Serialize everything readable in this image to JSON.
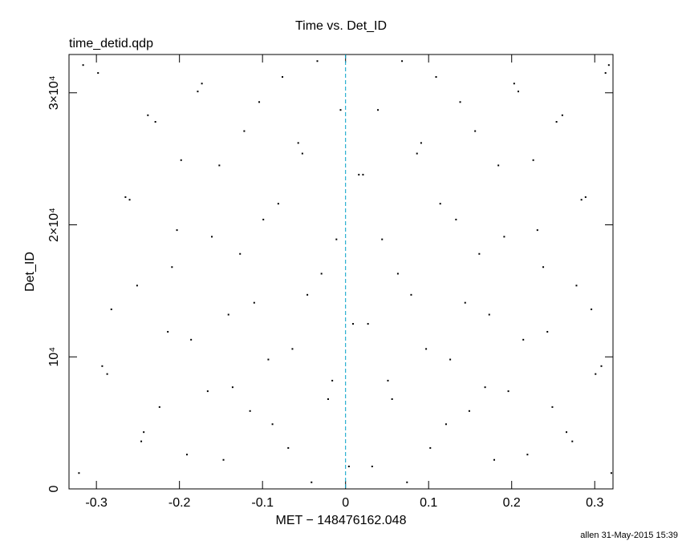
{
  "chart_data": {
    "type": "scatter",
    "title": "Time vs. Det_ID",
    "subtitle": "time_detid.qdp",
    "x_label": "MET − 148476162.048",
    "y_label": "Det_ID",
    "footer": "allen 31-May-2015 15:39",
    "color": "#000000",
    "reference_line": {
      "x": 0,
      "color": "#00a0c8"
    },
    "xlim": [
      -0.333,
      0.322
    ],
    "ylim": [
      0,
      32900
    ],
    "xticks": [
      -0.3,
      -0.2,
      -0.1,
      0,
      0.1,
      0.2,
      0.3
    ],
    "yticks": [
      0,
      {
        "value": 10000,
        "label": "10⁴"
      },
      {
        "value": 20000,
        "label": "2×10⁴"
      },
      {
        "value": 30000,
        "label": "3×10⁴"
      }
    ],
    "x": [
      -0.321,
      -0.298,
      -0.287,
      -0.265,
      -0.251,
      -0.243,
      -0.229,
      -0.214,
      -0.203,
      -0.191,
      -0.178,
      -0.166,
      -0.152,
      -0.141,
      -0.127,
      -0.115,
      -0.104,
      -0.093,
      -0.081,
      -0.069,
      -0.057,
      -0.046,
      -0.034,
      -0.021,
      -0.011,
      0.004,
      0.016,
      0.027,
      0.039,
      0.051,
      0.063,
      0.074,
      0.086,
      0.097,
      0.109,
      0.121,
      0.133,
      0.144,
      0.156,
      0.168,
      0.179,
      0.191,
      0.203,
      0.214,
      0.226,
      0.238,
      0.249,
      0.261,
      0.273,
      0.284,
      0.296,
      0.308,
      0.317,
      -0.316,
      -0.293,
      -0.282,
      -0.26,
      -0.246,
      -0.238,
      -0.224,
      -0.209,
      -0.198,
      -0.186,
      -0.173,
      -0.161,
      -0.147,
      -0.136,
      -0.122,
      -0.11,
      -0.099,
      -0.088,
      -0.076,
      -0.064,
      -0.052,
      -0.041,
      -0.029,
      -0.016,
      -0.006,
      0.009,
      0.021,
      0.032,
      0.044,
      0.056,
      0.068,
      0.079,
      0.091,
      0.102,
      0.114,
      0.126,
      0.138,
      0.149,
      0.161,
      0.173,
      0.184,
      0.196,
      0.208,
      0.219,
      0.231,
      0.243,
      0.254,
      0.266,
      0.278,
      0.289,
      0.301,
      0.313,
      0.32
    ],
    "values": [
      1200,
      31500,
      8700,
      22100,
      15400,
      4300,
      27800,
      11900,
      19600,
      2600,
      30100,
      7400,
      24500,
      13200,
      17800,
      5900,
      29300,
      9800,
      21600,
      3100,
      26200,
      14700,
      32400,
      6800,
      18900,
      1700,
      23800,
      12500,
      28700,
      8200,
      16300,
      500,
      25400,
      10600,
      31200,
      4900,
      20400,
      14100,
      27100,
      7700,
      2200,
      19100,
      30700,
      11300,
      24900,
      16800,
      6200,
      28300,
      3600,
      21900,
      13600,
      9300,
      32100,
      32100,
      9300,
      13600,
      21900,
      3600,
      28300,
      6200,
      16800,
      24900,
      11300,
      30700,
      19100,
      2200,
      7700,
      27100,
      14100,
      20400,
      4900,
      31200,
      10600,
      25400,
      500,
      16300,
      8200,
      28700,
      12500,
      23800,
      1700,
      18900,
      6800,
      32400,
      14700,
      26200,
      3100,
      21600,
      9800,
      29300,
      5900,
      17800,
      13200,
      24500,
      7400,
      30100,
      2600,
      19600,
      11900,
      27800,
      4300,
      15400,
      22100,
      8700,
      31500,
      1200
    ]
  }
}
